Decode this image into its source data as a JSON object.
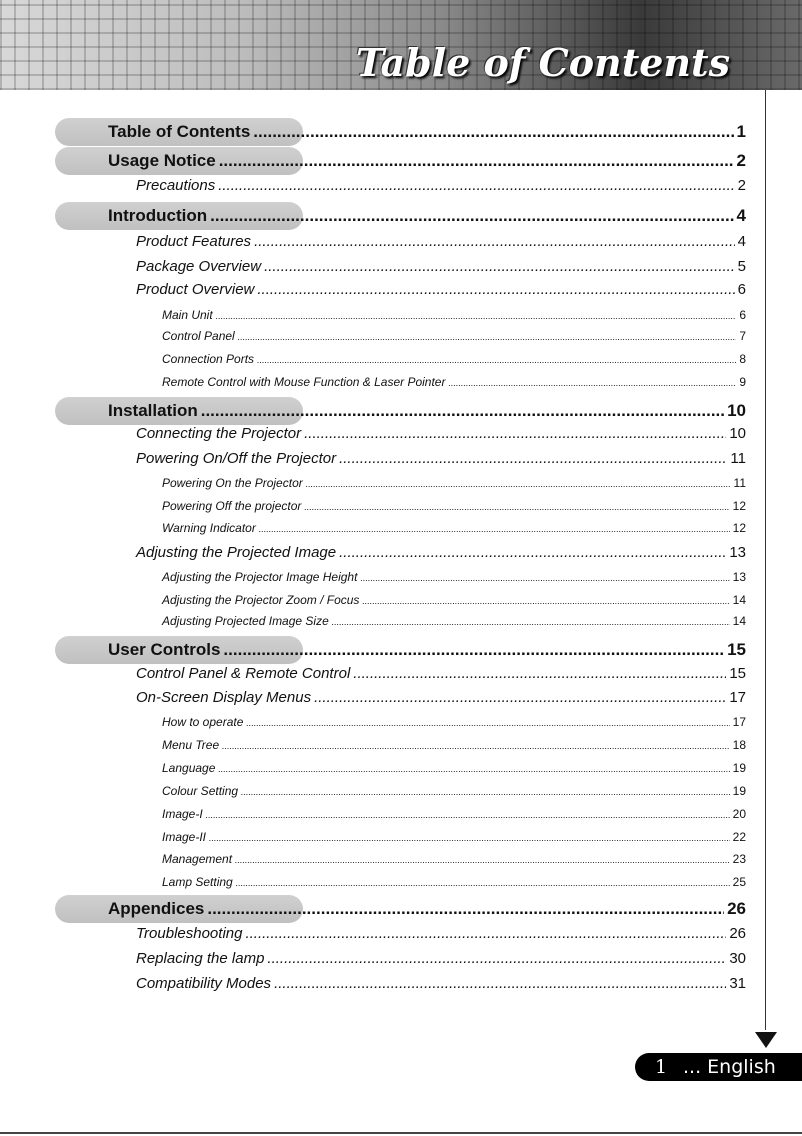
{
  "header": {
    "title": "Table of Contents"
  },
  "footer": {
    "page_number": "1",
    "language": "... English"
  },
  "toc": [
    {
      "level": 1,
      "title": "Table of Contents",
      "page": "1"
    },
    {
      "level": 1,
      "title": "Usage Notice",
      "page": "2"
    },
    {
      "level": 2,
      "title": "Precautions",
      "page": "2"
    },
    {
      "level": 1,
      "title": "Introduction",
      "page": "4"
    },
    {
      "level": 2,
      "title": "Product Features",
      "page": "4"
    },
    {
      "level": 2,
      "title": "Package Overview",
      "page": "5"
    },
    {
      "level": 2,
      "title": "Product Overview",
      "page": "6"
    },
    {
      "level": 3,
      "title": "Main Unit",
      "page": "6"
    },
    {
      "level": 3,
      "title": "Control Panel",
      "page": "7"
    },
    {
      "level": 3,
      "title": "Connection Ports",
      "page": "8"
    },
    {
      "level": 3,
      "title": "Remote Control with Mouse Function & Laser Pointer",
      "page": "9"
    },
    {
      "level": 1,
      "title": "Installation",
      "page": "10"
    },
    {
      "level": 2,
      "title": "Connecting the Projector",
      "page": "10"
    },
    {
      "level": 2,
      "title": "Powering On/Off the Projector",
      "page": "11"
    },
    {
      "level": 3,
      "title": "Powering On the Projector",
      "page": "11"
    },
    {
      "level": 3,
      "title": "Powering Off the projector",
      "page": "12"
    },
    {
      "level": 3,
      "title": "Warning Indicator",
      "page": "12"
    },
    {
      "level": 2,
      "title": "Adjusting the Projected Image",
      "page": "13"
    },
    {
      "level": 3,
      "title": "Adjusting the Projector Image Height",
      "page": "13"
    },
    {
      "level": 3,
      "title": "Adjusting the Projector Zoom / Focus",
      "page": "14"
    },
    {
      "level": 3,
      "title": "Adjusting Projected Image Size",
      "page": "14"
    },
    {
      "level": 1,
      "title": "User Controls",
      "page": "15"
    },
    {
      "level": 2,
      "title": "Control Panel & Remote Control",
      "page": "15"
    },
    {
      "level": 2,
      "title": "On-Screen Display Menus",
      "page": "17"
    },
    {
      "level": 3,
      "title": "How to operate",
      "page": "17"
    },
    {
      "level": 3,
      "title": "Menu Tree",
      "page": "18"
    },
    {
      "level": 3,
      "title": "Language",
      "page": "19"
    },
    {
      "level": 3,
      "title": "Colour Setting",
      "page": "19"
    },
    {
      "level": 3,
      "title": "Image-I",
      "page": "20"
    },
    {
      "level": 3,
      "title": "Image-II",
      "page": "22"
    },
    {
      "level": 3,
      "title": "Management",
      "page": "23"
    },
    {
      "level": 3,
      "title": "Lamp Setting",
      "page": "25"
    },
    {
      "level": 1,
      "title": "Appendices",
      "page": "26"
    },
    {
      "level": 2,
      "title": "Troubleshooting",
      "page": "26"
    },
    {
      "level": 2,
      "title": "Replacing the lamp",
      "page": "30"
    },
    {
      "level": 2,
      "title": "Compatibility Modes",
      "page": "31"
    }
  ]
}
